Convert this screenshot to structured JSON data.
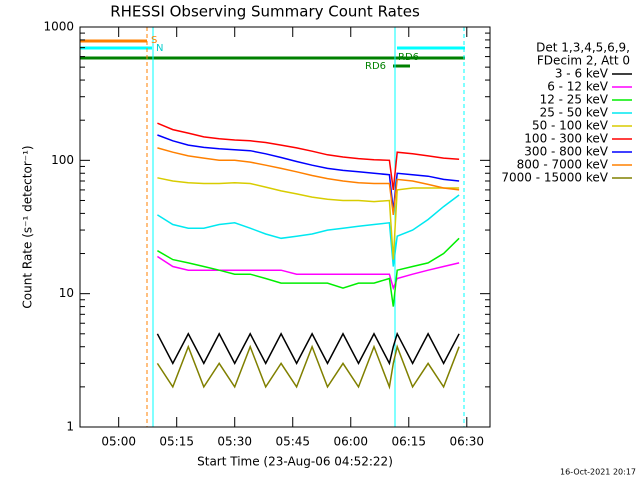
{
  "chart_data": {
    "type": "line",
    "title": "RHESSI Observing Summary Count Rates",
    "xlabel": "Start Time (23-Aug-06 04:52:22)",
    "ylabel": "Count Rate (s⁻¹ detector⁻¹)",
    "legend_title": [
      "Det 1,3,4,5,6,9,",
      "FDecim 2, Att 0"
    ],
    "footer": "16-Oct-2021 20:17",
    "annotations": [
      "S",
      "N",
      "RD6",
      "RD6"
    ],
    "log_y": true,
    "legend": "right",
    "xlim": [
      "04:50",
      "06:36"
    ],
    "xticks": [
      "05:00",
      "05:15",
      "05:30",
      "05:45",
      "06:00",
      "06:15",
      "06:30"
    ],
    "ylim": [
      1,
      1000
    ],
    "yticks": [
      1,
      10,
      100,
      1000
    ],
    "x": [
      "05:10",
      "05:14",
      "05:18",
      "05:22",
      "05:26",
      "05:30",
      "05:34",
      "05:38",
      "05:42",
      "05:46",
      "05:50",
      "05:54",
      "05:58",
      "06:02",
      "06:06",
      "06:10",
      "06:11",
      "06:12",
      "06:16",
      "06:20",
      "06:24",
      "06:28"
    ],
    "series": [
      {
        "name": "3 - 6 keV",
        "color": "#000000",
        "values": [
          5,
          3,
          5,
          3,
          5,
          3,
          5,
          3,
          5,
          3,
          5,
          3,
          5,
          3,
          5,
          3,
          4,
          5,
          3,
          5,
          3,
          5
        ]
      },
      {
        "name": "6 - 12 keV",
        "color": "#ff00ff",
        "values": [
          19,
          16,
          15,
          15,
          15,
          15,
          15,
          15,
          15,
          14,
          14,
          14,
          14,
          14,
          14,
          14,
          11,
          13,
          14,
          15,
          16,
          17
        ]
      },
      {
        "name": "12 - 25 keV",
        "color": "#00ee00",
        "values": [
          21,
          18,
          17,
          16,
          15,
          14,
          14,
          13,
          12,
          12,
          12,
          12,
          11,
          12,
          12,
          13,
          8,
          15,
          16,
          17,
          20,
          26
        ]
      },
      {
        "name": "25 - 50 keV",
        "color": "#00e8f0",
        "values": [
          39,
          33,
          31,
          31,
          33,
          34,
          31,
          28,
          26,
          27,
          28,
          30,
          31,
          32,
          33,
          34,
          16,
          27,
          30,
          36,
          45,
          55
        ]
      },
      {
        "name": "50 - 100 keV",
        "color": "#d8cc00",
        "values": [
          74,
          70,
          68,
          67,
          67,
          68,
          67,
          63,
          59,
          56,
          53,
          51,
          50,
          50,
          49,
          50,
          18,
          60,
          62,
          62,
          62,
          62
        ]
      },
      {
        "name": "100 - 300 keV",
        "color": "#ff0000",
        "values": [
          190,
          170,
          160,
          150,
          145,
          142,
          140,
          136,
          130,
          124,
          117,
          110,
          106,
          103,
          101,
          100,
          60,
          115,
          112,
          108,
          104,
          102
        ]
      },
      {
        "name": "300 - 800 keV",
        "color": "#0000ff",
        "values": [
          155,
          140,
          130,
          125,
          122,
          120,
          118,
          112,
          105,
          98,
          92,
          87,
          84,
          82,
          80,
          78,
          42,
          80,
          78,
          76,
          72,
          70
        ]
      },
      {
        "name": "800 - 7000 keV",
        "color": "#ff8000",
        "values": [
          124,
          115,
          108,
          104,
          100,
          100,
          97,
          92,
          87,
          82,
          77,
          73,
          70,
          68,
          67,
          67,
          39,
          72,
          70,
          66,
          62,
          60
        ]
      },
      {
        "name": "7000 - 15000 keV",
        "color": "#808000",
        "values": [
          3,
          2,
          4,
          2,
          3,
          2,
          4,
          2,
          3,
          2,
          4,
          2,
          3,
          2,
          4,
          2,
          3,
          4,
          2,
          3,
          2,
          4
        ]
      }
    ]
  }
}
